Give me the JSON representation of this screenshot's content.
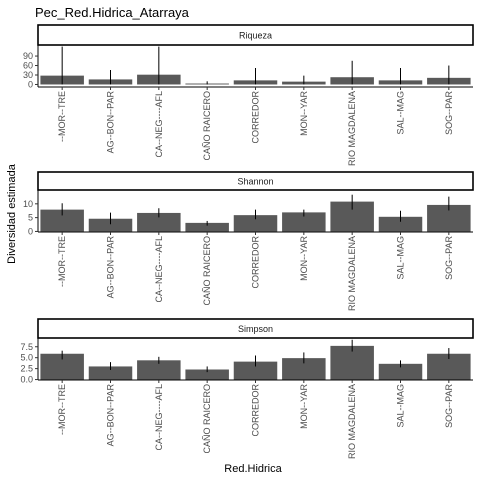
{
  "chart_data": {
    "type": "bar",
    "title": "Pec_Red.Hidrica_Atarraya",
    "xlabel": "Red.Hidrica",
    "ylabel": "Diversidad estimada",
    "categories": [
      "--MOR--TRE",
      "AG--BON--PAR",
      "CA--NEG----AFL",
      "CAÑO RAICERO",
      "CORREDOR",
      "MON--YAR",
      "RIO MAGDALENA",
      "SAL--MAG",
      "SOG--PAR"
    ],
    "bar_color": "#595959",
    "grid": false,
    "facets": [
      {
        "name": "Riqueza",
        "ylim": [
          -8,
          125
        ],
        "yticks": [
          0,
          30,
          60,
          90
        ],
        "values": [
          28,
          16,
          31,
          3,
          13,
          9,
          23,
          13,
          21
        ],
        "error_upper": [
          120,
          46,
          120,
          10,
          52,
          28,
          75,
          52,
          60
        ],
        "error_lower": [
          0,
          0,
          0,
          0,
          0,
          0,
          0,
          0,
          0
        ]
      },
      {
        "name": "Shannon",
        "ylim": [
          -0.2,
          15
        ],
        "yticks": [
          0,
          5,
          10
        ],
        "values": [
          7.9,
          4.6,
          6.7,
          3.1,
          5.9,
          6.9,
          10.8,
          5.3,
          9.6
        ],
        "error_upper": [
          10.2,
          6.8,
          8.4,
          3.8,
          7.9,
          7.9,
          13.3,
          7.5,
          12.6
        ],
        "error_lower": [
          5.8,
          2.6,
          5.1,
          2.1,
          4.4,
          5.4,
          7.9,
          3.5,
          7.6
        ]
      },
      {
        "name": "Simpson",
        "ylim": [
          -0.1,
          9.5
        ],
        "yticks": [
          0.0,
          2.5,
          5.0,
          7.5
        ],
        "ytick_labels": [
          "0.0",
          "2.5",
          "5.0",
          "7.5"
        ],
        "values": [
          5.9,
          3.0,
          4.4,
          2.3,
          4.1,
          4.9,
          7.7,
          3.6,
          5.9
        ],
        "error_upper": [
          6.6,
          4.0,
          5.2,
          3.0,
          5.5,
          6.2,
          9.1,
          4.4,
          7.2
        ],
        "error_lower": [
          4.6,
          2.2,
          3.6,
          1.7,
          3.0,
          3.7,
          6.4,
          2.8,
          4.7
        ]
      }
    ]
  }
}
